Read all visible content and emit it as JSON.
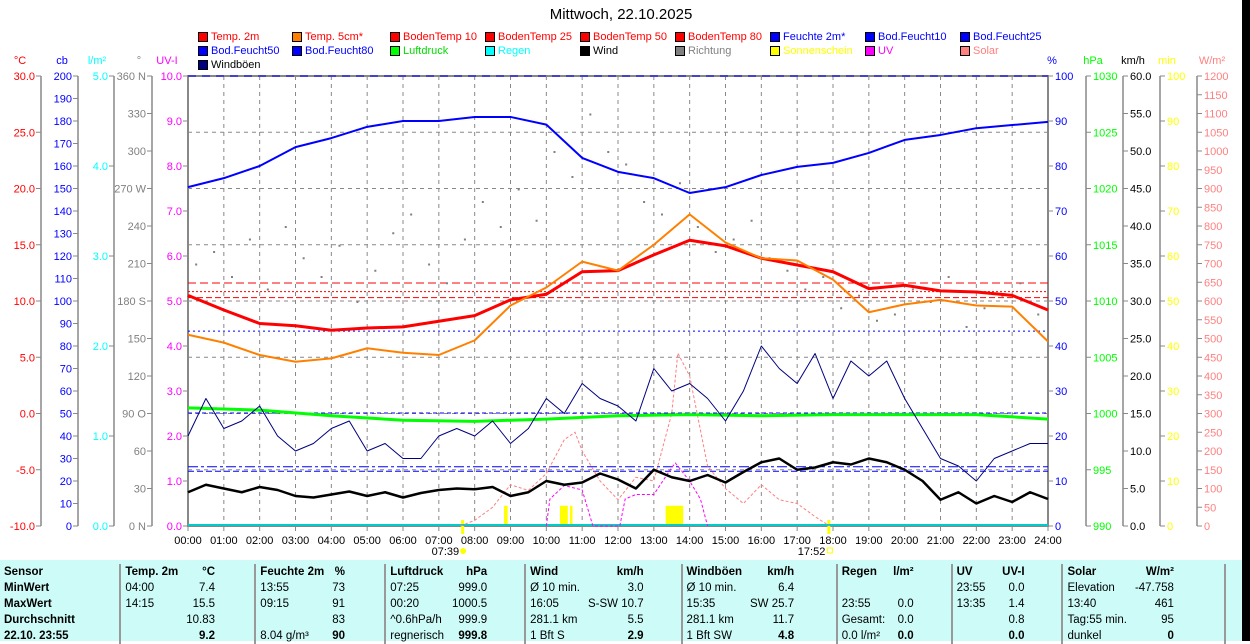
{
  "title": "Mittwoch, 22.10.2025",
  "legend": [
    {
      "label": "Temp. 2m",
      "color": "#ff0000",
      "text": "#ff0000"
    },
    {
      "label": "Temp. 5cm*",
      "color": "#ff8000",
      "text": "#ff0000"
    },
    {
      "label": "BodenTemp 10",
      "color": "#ff0000",
      "text": "#ff0000"
    },
    {
      "label": "BodenTemp 25",
      "color": "#ff0000",
      "text": "#ff0000"
    },
    {
      "label": "BodenTemp 50",
      "color": "#ff0000",
      "text": "#ff0000"
    },
    {
      "label": "BodenTemp 80",
      "color": "#ff0000",
      "text": "#ff0000"
    },
    {
      "label": "Feuchte 2m*",
      "color": "#0000ff",
      "text": "#0000ff"
    },
    {
      "label": "Bod.Feucht10",
      "color": "#0000ff",
      "text": "#0000ff"
    },
    {
      "label": "Bod.Feucht25",
      "color": "#0000ff",
      "text": "#0000ff"
    },
    {
      "label": "Bod.Feucht50",
      "color": "#0000ff",
      "text": "#0000ff"
    },
    {
      "label": "Bod.Feucht80",
      "color": "#0000ff",
      "text": "#0000ff"
    },
    {
      "label": "Luftdruck",
      "color": "#00ff00",
      "text": "#00dd00"
    },
    {
      "label": "Regen",
      "color": "#00ffff",
      "text": "#00ffff"
    },
    {
      "label": "Wind",
      "color": "#000000",
      "text": "#000000"
    },
    {
      "label": "Richtung",
      "color": "#808080",
      "text": "#808080"
    },
    {
      "label": "Sonnenschein",
      "color": "#ffff00",
      "text": "#ffff00"
    },
    {
      "label": "UV",
      "color": "#ff00ff",
      "text": "#ff00ff"
    },
    {
      "label": "Solar",
      "color": "#ff8080",
      "text": "#ff8080"
    },
    {
      "label": "Windböen",
      "color": "#000080",
      "text": "#000000"
    }
  ],
  "chart_data": {
    "type": "line",
    "title": "Mittwoch, 22.10.2025",
    "x_ticks": [
      "00:00",
      "01:00",
      "02:00",
      "03:00",
      "04:00",
      "05:00",
      "06:00",
      "07:00",
      "08:00",
      "09:00",
      "10:00",
      "11:00",
      "12:00",
      "13:00",
      "14:00",
      "15:00",
      "16:00",
      "17:00",
      "18:00",
      "19:00",
      "20:00",
      "21:00",
      "22:00",
      "23:00",
      "24:00"
    ],
    "xlim": [
      0,
      24
    ],
    "sunrise": {
      "label": "07:39",
      "hour": 7.65
    },
    "sunset": {
      "label": "17:52",
      "hour": 17.87
    },
    "axes_left": [
      {
        "unit": "°C",
        "color": "#ff0000",
        "min": -10,
        "max": 30,
        "ticks": [
          "30.0",
          "25.0",
          "20.0",
          "15.0",
          "10.0",
          "5.0",
          "0.0",
          "-5.0",
          "-10.0"
        ]
      },
      {
        "unit": "cb",
        "color": "#0000ff",
        "min": 0,
        "max": 200,
        "ticks": [
          "200",
          "190",
          "180",
          "170",
          "160",
          "150",
          "140",
          "130",
          "120",
          "110",
          "100",
          "90",
          "80",
          "70",
          "60",
          "50",
          "40",
          "30",
          "20",
          "10",
          "0"
        ]
      },
      {
        "unit": "l/m²",
        "color": "#00ffff",
        "min": 0,
        "max": 5,
        "ticks": [
          "5.0",
          "4.0",
          "3.0",
          "2.0",
          "1.0",
          "0.0"
        ]
      },
      {
        "unit": "°",
        "color": "#808080",
        "min": 0,
        "max": 360,
        "ticks": [
          "360 N",
          "330",
          "300",
          "270 W",
          "240",
          "210",
          "180 S",
          "150",
          "120",
          "90  O",
          "60",
          "30",
          "0   N"
        ]
      },
      {
        "unit": "UV-I",
        "color": "#ff00ff",
        "min": 0,
        "max": 10,
        "ticks": [
          "10.0",
          "9.0",
          "8.0",
          "7.0",
          "6.0",
          "5.0",
          "4.0",
          "3.0",
          "2.0",
          "1.0",
          "0.0"
        ]
      }
    ],
    "axes_right": [
      {
        "unit": "%",
        "color": "#0000ff",
        "min": 0,
        "max": 100,
        "ticks": [
          "100",
          "90",
          "80",
          "70",
          "60",
          "50",
          "40",
          "30",
          "20",
          "10",
          "0"
        ]
      },
      {
        "unit": "hPa",
        "color": "#00ff00",
        "min": 990,
        "max": 1030,
        "ticks": [
          "1030",
          "1025",
          "1020",
          "1015",
          "1010",
          "1005",
          "1000",
          "995",
          "990"
        ]
      },
      {
        "unit": "km/h",
        "color": "#000000",
        "min": 0,
        "max": 60,
        "ticks": [
          "60.0",
          "55.0",
          "50.0",
          "45.0",
          "40.0",
          "35.0",
          "30.0",
          "25.0",
          "20.0",
          "15.0",
          "10.0",
          "5.0",
          "0.0"
        ]
      },
      {
        "unit": "min",
        "color": "#ffff00",
        "min": 0,
        "max": 100,
        "ticks": [
          "100",
          "90",
          "80",
          "70",
          "60",
          "50",
          "40",
          "30",
          "20",
          "10",
          "0"
        ]
      },
      {
        "unit": "W/m²",
        "color": "#ff8080",
        "min": 0,
        "max": 1200,
        "ticks": [
          "1200",
          "1150",
          "1100",
          "1050",
          "1000",
          "950",
          "900",
          "850",
          "800",
          "750",
          "700",
          "650",
          "600",
          "550",
          "500",
          "450",
          "400",
          "350",
          "300",
          "250",
          "200",
          "150",
          "100",
          "50",
          "0"
        ]
      }
    ],
    "series": [
      {
        "name": "Temp. 2m",
        "axis": "°C",
        "color": "#ff0000",
        "width": 3,
        "x_step": 1,
        "values": [
          10.5,
          9.2,
          8.0,
          7.8,
          7.4,
          7.6,
          7.7,
          8.2,
          8.7,
          10.1,
          10.6,
          12.6,
          12.7,
          14.1,
          15.4,
          14.9,
          13.8,
          13.2,
          12.6,
          11.1,
          11.4,
          10.9,
          10.8,
          10.5,
          9.2
        ]
      },
      {
        "name": "Temp. 5cm*",
        "axis": "°C",
        "color": "#ff8000",
        "width": 2,
        "x_step": 1,
        "values": [
          7.0,
          6.3,
          5.2,
          4.6,
          4.9,
          5.8,
          5.4,
          5.2,
          6.5,
          9.6,
          11.2,
          13.5,
          12.7,
          15.0,
          17.7,
          15.2,
          13.8,
          13.6,
          11.9,
          9.0,
          9.7,
          10.1,
          9.6,
          9.5,
          6.4
        ]
      },
      {
        "name": "Feuchte 2m*",
        "axis": "%",
        "color": "#0000ff",
        "width": 2,
        "x_step": 1,
        "values": [
          75.3,
          77.3,
          80,
          84.2,
          86.2,
          88.7,
          90,
          90,
          90.9,
          90.9,
          89.2,
          81.8,
          78.7,
          77.3,
          74,
          75.3,
          78,
          79.8,
          80.7,
          82.9,
          85.8,
          86.9,
          88.4,
          89.1,
          89.8
        ]
      },
      {
        "name": "Luftdruck",
        "axis": "hPa",
        "color": "#00ff00",
        "width": 3,
        "x_step": 2,
        "values": [
          1000.5,
          1000.3,
          999.8,
          999.4,
          999.3,
          999.5,
          999.8,
          999.9,
          999.8,
          999.9,
          999.9,
          999.9,
          999.5
        ]
      },
      {
        "name": "Windböen",
        "axis": "km/h",
        "color": "#000080",
        "width": 1,
        "x_step": 0.5,
        "values": [
          12,
          17,
          13,
          14,
          16,
          12,
          10,
          11,
          13,
          14,
          10,
          11,
          9,
          9,
          12,
          13,
          12,
          14,
          11,
          13,
          17,
          15,
          19,
          17,
          16,
          14,
          21,
          18,
          19,
          17,
          14,
          18,
          24,
          21,
          19,
          23,
          17,
          22,
          20,
          22,
          17,
          13,
          9,
          8,
          6,
          9,
          10,
          11,
          11
        ]
      },
      {
        "name": "Wind",
        "axis": "km/h",
        "color": "#000000",
        "width": 2.5,
        "x_step": 0.5,
        "values": [
          4.5,
          5.5,
          5.0,
          4.5,
          5.2,
          4.8,
          4.0,
          3.8,
          4.2,
          4.6,
          4.0,
          4.5,
          3.8,
          4.4,
          4.8,
          5.0,
          4.9,
          5.2,
          4.0,
          4.5,
          6.0,
          5.5,
          5.8,
          7.0,
          6.2,
          5.0,
          7.5,
          6.5,
          6.0,
          6.8,
          5.8,
          7.2,
          8.5,
          9.0,
          7.5,
          7.8,
          8.5,
          8.2,
          9.0,
          8.5,
          7.5,
          6.0,
          3.5,
          4.5,
          3.0,
          4.0,
          3.2,
          4.5,
          3.6
        ]
      }
    ],
    "dotted_series": [
      {
        "name": "Solar",
        "axis": "W/m²",
        "color": "#ff8080",
        "points": [
          [
            7.6,
            0
          ],
          [
            8,
            15
          ],
          [
            8.5,
            50
          ],
          [
            9,
            110
          ],
          [
            9.5,
            95
          ],
          [
            10,
            140
          ],
          [
            10.5,
            230
          ],
          [
            10.8,
            250
          ],
          [
            11,
            200
          ],
          [
            11.5,
            120
          ],
          [
            12,
            70
          ],
          [
            12.5,
            130
          ],
          [
            13,
            120
          ],
          [
            13.5,
            300
          ],
          [
            13.67,
            461
          ],
          [
            14,
            400
          ],
          [
            14.5,
            160
          ],
          [
            15,
            100
          ],
          [
            15.5,
            60
          ],
          [
            16,
            110
          ],
          [
            16.5,
            70
          ],
          [
            17,
            60
          ],
          [
            17.5,
            25
          ],
          [
            17.9,
            0
          ]
        ]
      },
      {
        "name": "UV",
        "axis": "UV-I",
        "color": "#ff00ff",
        "points": [
          [
            10,
            0
          ],
          [
            10.1,
            0.6
          ],
          [
            10.5,
            0.9
          ],
          [
            11,
            0.8
          ],
          [
            11.3,
            0
          ],
          [
            12.05,
            0
          ],
          [
            12.2,
            0.6
          ],
          [
            12.5,
            0.7
          ],
          [
            13,
            0.7
          ],
          [
            13.5,
            1.3
          ],
          [
            13.6,
            1.4
          ],
          [
            14,
            1.0
          ],
          [
            14.3,
            0.6
          ],
          [
            14.5,
            0
          ]
        ]
      }
    ],
    "richtung": {
      "axis": "°",
      "color": "#808080",
      "values": [
        210,
        220,
        200,
        230,
        190,
        240,
        215,
        200,
        225,
        180,
        205,
        235,
        250,
        210,
        195,
        230,
        260,
        240,
        270,
        245,
        300,
        280,
        330,
        300,
        290,
        260,
        250,
        275,
        240,
        220,
        230,
        245,
        215,
        205,
        190,
        200,
        175,
        185,
        165,
        170,
        190,
        180,
        200,
        160,
        175,
        185,
        195,
        170
      ]
    },
    "sunshine": {
      "axis": "min",
      "color": "#ffff00",
      "bars": [
        [
          8.82,
          8.92,
          4.5
        ],
        [
          10.38,
          10.6,
          4.5
        ],
        [
          10.66,
          10.73,
          4.5
        ],
        [
          13.33,
          13.82,
          4.5
        ]
      ]
    },
    "reference_lines": [
      {
        "axis": "%",
        "value": 100,
        "color": "#0000ff",
        "dash": "8,6"
      },
      {
        "axis": "°C",
        "value": 11.6,
        "color": "#ff0000",
        "dash": "8,4"
      },
      {
        "axis": "°C",
        "value": 10.83,
        "color": "#ff0000",
        "dash": "2,2"
      },
      {
        "axis": "°C",
        "value": 10.3,
        "color": "#ff0000",
        "dash": "6,3"
      },
      {
        "axis": "%",
        "value": 43.3,
        "color": "#0000ff",
        "dash": "2,3"
      },
      {
        "axis": "%",
        "value": 25.1,
        "color": "#0000ff",
        "dash": "4,3"
      },
      {
        "axis": "km/h",
        "value": 7.9,
        "color": "#0000ff",
        "dash": "10,3,3,3"
      },
      {
        "axis": "km/h",
        "value": 7.3,
        "color": "#0000ff",
        "dash": "6,3"
      }
    ]
  },
  "stats": {
    "rows": [
      [
        "Sensor",
        "Temp. 2m",
        "°C",
        "Feuchte 2m",
        "%",
        "Luftdruck",
        "hPa",
        "Wind",
        "km/h",
        "Windböen",
        "km/h",
        "Regen",
        "l/m²",
        "UV",
        "UV-I",
        "Solar",
        "W/m²"
      ],
      [
        "MinWert",
        "04:00",
        "7.4",
        "13:55",
        "73",
        "07:25",
        "999.0",
        "Ø 10 min.",
        "3.0",
        "Ø 10 min.",
        "6.4",
        "",
        "",
        "23:55",
        "0.0",
        "Elevation",
        "-47.758"
      ],
      [
        "MaxWert",
        "14:15",
        "15.5",
        "09:15",
        "91",
        "00:20",
        "1000.5",
        "16:05",
        "S-SW 10.7",
        "15:35",
        "SW 25.7",
        "23:55",
        "0.0",
        "13:35",
        "1.4",
        "13:40",
        "461"
      ],
      [
        "Durchschnitt",
        "",
        "10.83",
        "",
        "83",
        "^0.6hPa/h",
        "999.9",
        "281.1 km",
        "5.5",
        "281.1 km",
        "11.7",
        "Gesamt:",
        "0.0",
        "",
        "0.8",
        "Tag:55 min.",
        "95"
      ],
      [
        "22.10. 23:55",
        "",
        "9.2",
        "8.04 g/m³",
        "90",
        "regnerisch",
        "999.8",
        "1 Bft S",
        "2.9",
        "1 Bft SW",
        "4.8",
        "0.0 l/m²",
        "0.0",
        "",
        "0.0",
        "dunkel",
        "0"
      ]
    ]
  }
}
